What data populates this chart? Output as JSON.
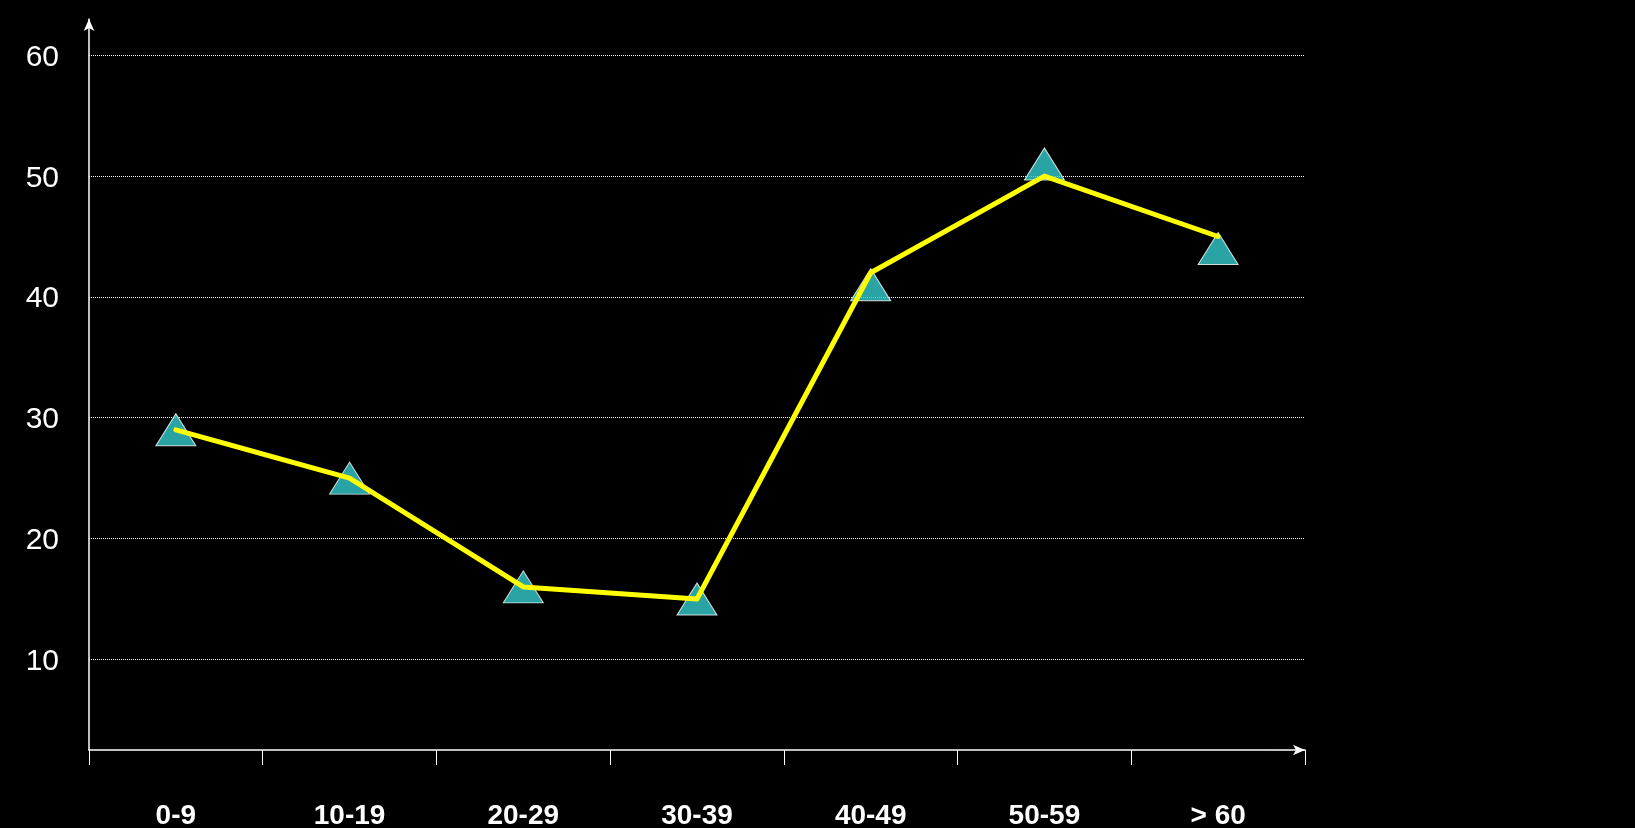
{
  "chart_data": {
    "type": "line",
    "categories": [
      "0-9",
      "10-19",
      "20-29",
      "30-39",
      "40-49",
      "50-59",
      "> 60"
    ],
    "series": [
      {
        "type": "line",
        "color": "#ffff00",
        "values": [
          29,
          25,
          16,
          15,
          42,
          50,
          45
        ],
        "marker": "none",
        "line_style": "solid"
      },
      {
        "type": "scatter",
        "color": "#33cccc",
        "values": [
          29,
          25,
          16,
          15,
          41,
          51,
          44
        ],
        "marker": "triangle"
      }
    ],
    "ylim": [
      2.5,
      63
    ],
    "yticks": [
      10,
      20,
      30,
      40,
      50,
      60
    ],
    "grid": "y"
  }
}
